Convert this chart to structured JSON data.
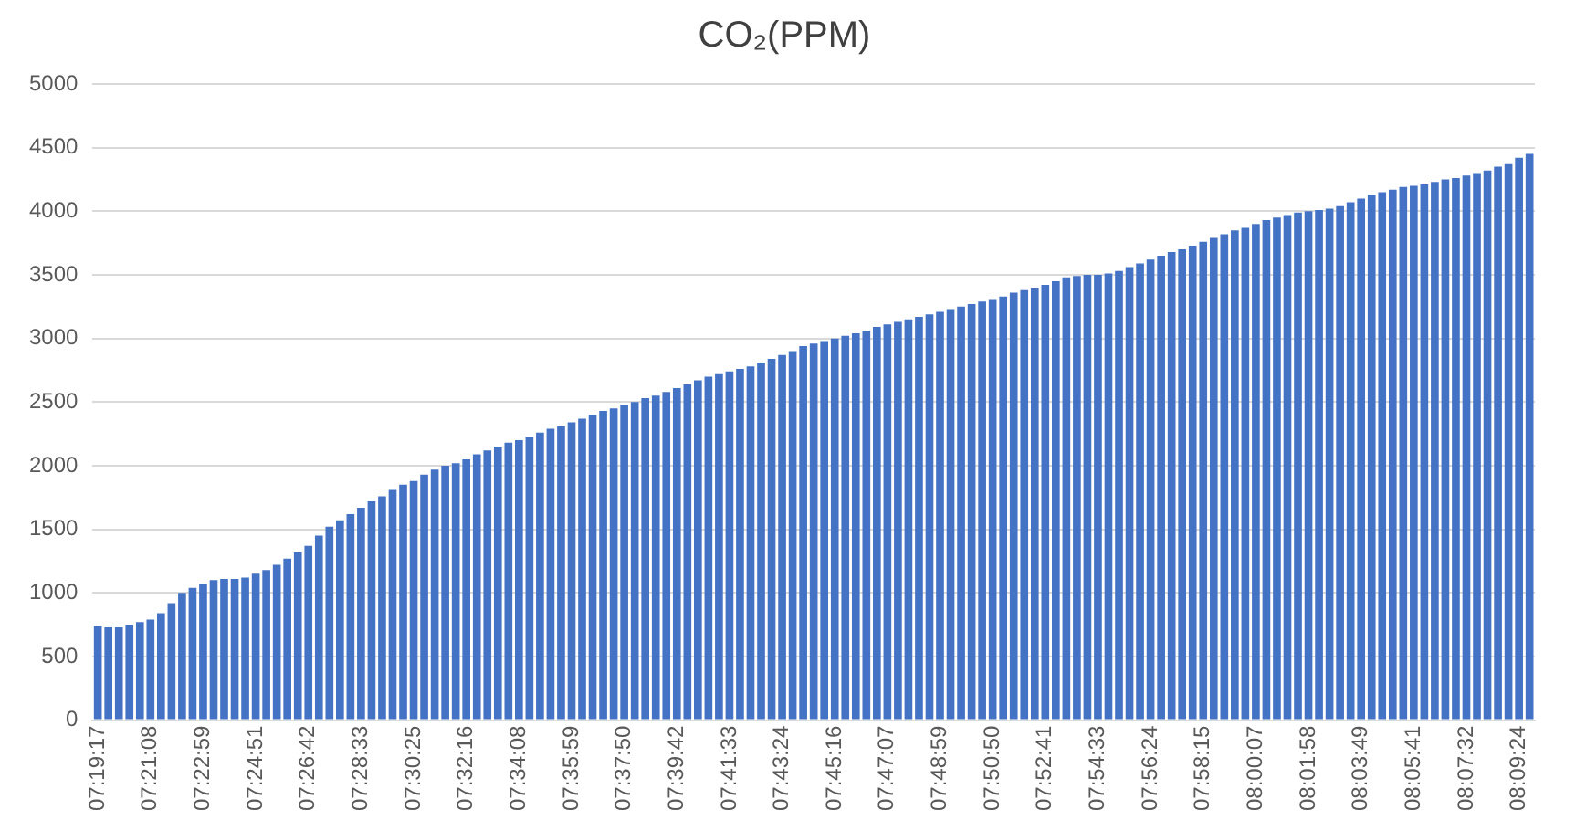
{
  "chart_data": {
    "type": "bar",
    "title": "CO₂(PPM)",
    "categories": [
      "07:19:17",
      null,
      null,
      null,
      null,
      "07:21:08",
      null,
      null,
      null,
      null,
      "07:22:59",
      null,
      null,
      null,
      null,
      "07:24:51",
      null,
      null,
      null,
      null,
      "07:26:42",
      null,
      null,
      null,
      null,
      "07:28:33",
      null,
      null,
      null,
      null,
      "07:30:25",
      null,
      null,
      null,
      null,
      "07:32:16",
      null,
      null,
      null,
      null,
      "07:34:08",
      null,
      null,
      null,
      null,
      "07:35:59",
      null,
      null,
      null,
      null,
      "07:37:50",
      null,
      null,
      null,
      null,
      "07:39:42",
      null,
      null,
      null,
      null,
      "07:41:33",
      null,
      null,
      null,
      null,
      "07:43:24",
      null,
      null,
      null,
      null,
      "07:45:16",
      null,
      null,
      null,
      null,
      "07:47:07",
      null,
      null,
      null,
      null,
      "07:48:59",
      null,
      null,
      null,
      null,
      "07:50:50",
      null,
      null,
      null,
      null,
      "07:52:41",
      null,
      null,
      null,
      null,
      "07:54:33",
      null,
      null,
      null,
      null,
      "07:56:24",
      null,
      null,
      null,
      null,
      "07:58:15",
      null,
      null,
      null,
      null,
      "08:00:07",
      null,
      null,
      null,
      null,
      "08:01:58",
      null,
      null,
      null,
      null,
      "08:03:49",
      null,
      null,
      null,
      null,
      "08:05:41",
      null,
      null,
      null,
      null,
      "08:07:32",
      null,
      null,
      null,
      null,
      "08:09:24",
      null
    ],
    "values": [
      740,
      730,
      730,
      750,
      770,
      790,
      840,
      920,
      1000,
      1040,
      1070,
      1100,
      1110,
      1110,
      1120,
      1150,
      1180,
      1220,
      1270,
      1320,
      1370,
      1450,
      1520,
      1570,
      1620,
      1670,
      1720,
      1760,
      1810,
      1850,
      1880,
      1930,
      1970,
      2000,
      2020,
      2050,
      2090,
      2120,
      2150,
      2180,
      2200,
      2230,
      2260,
      2290,
      2310,
      2340,
      2370,
      2400,
      2430,
      2450,
      2480,
      2500,
      2530,
      2550,
      2580,
      2610,
      2640,
      2670,
      2700,
      2720,
      2740,
      2760,
      2780,
      2810,
      2840,
      2870,
      2900,
      2940,
      2960,
      2980,
      3000,
      3020,
      3040,
      3060,
      3090,
      3110,
      3130,
      3150,
      3170,
      3190,
      3210,
      3230,
      3250,
      3270,
      3290,
      3310,
      3330,
      3360,
      3380,
      3400,
      3420,
      3450,
      3480,
      3490,
      3500,
      3500,
      3510,
      3530,
      3560,
      3590,
      3620,
      3650,
      3680,
      3700,
      3730,
      3760,
      3790,
      3820,
      3850,
      3870,
      3900,
      3930,
      3950,
      3970,
      3990,
      4000,
      4010,
      4020,
      4040,
      4070,
      4100,
      4130,
      4150,
      4170,
      4190,
      4200,
      4210,
      4230,
      4250,
      4260,
      4280,
      4300,
      4320,
      4350,
      4370,
      4420,
      4450
    ],
    "color": "#4472c4",
    "ylim": [
      0,
      5000
    ],
    "yticks": [
      0,
      500,
      1000,
      1500,
      2000,
      2500,
      3000,
      3500,
      4000,
      4500,
      5000
    ],
    "grid": "y",
    "legend": false
  }
}
